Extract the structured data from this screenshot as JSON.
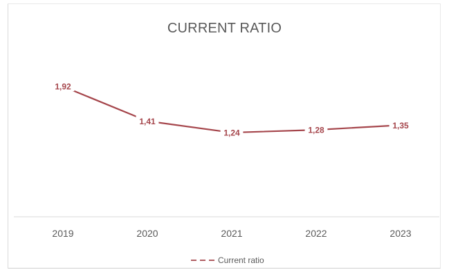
{
  "chart_data": {
    "type": "line",
    "title": "CURRENT RATIO",
    "xlabel": "",
    "ylabel": "",
    "categories": [
      "2019",
      "2020",
      "2021",
      "2022",
      "2023"
    ],
    "series": [
      {
        "name": "Current ratio",
        "values": [
          1.92,
          1.41,
          1.24,
          1.28,
          1.35
        ],
        "labels": [
          "1,92",
          "1,41",
          "1,24",
          "1,28",
          "1,35"
        ],
        "color": "#a5454b",
        "dash": "dashed"
      }
    ],
    "ylim": [
      0,
      2.4
    ],
    "grid": false,
    "y_axis_visible": false,
    "legend": "bottom"
  }
}
